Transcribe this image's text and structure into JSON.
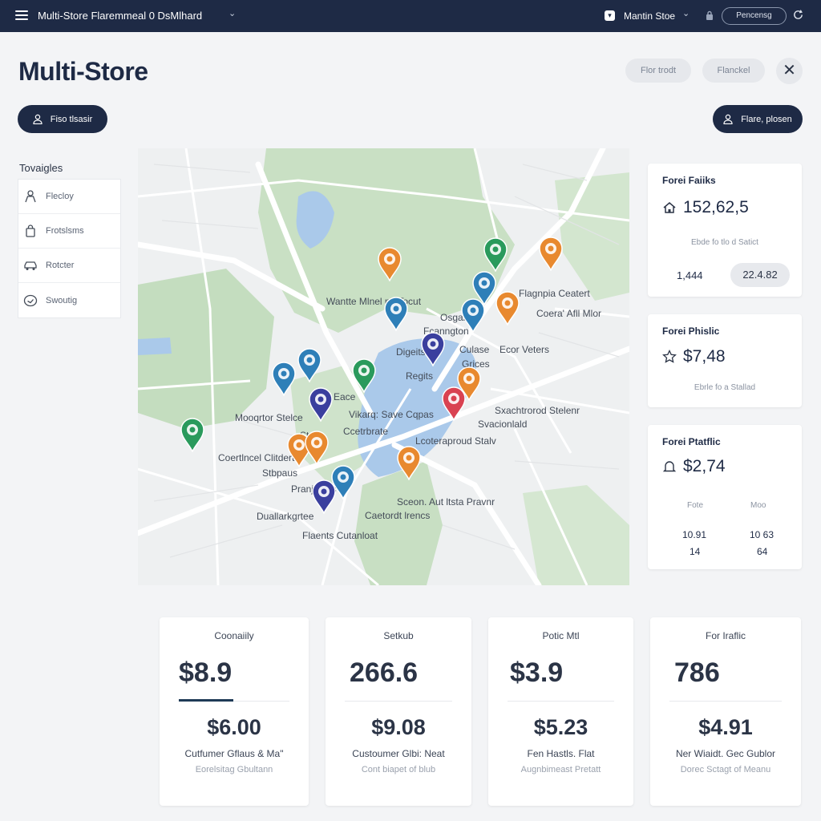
{
  "topbar": {
    "app_title": "Multi-Store Flaremmeal 0 DsMlhard",
    "store_name": "Mantin Stoe",
    "button_label": "Pencensg"
  },
  "header": {
    "title": "Multi-Store",
    "ghost_button_1": "Flor trodt",
    "ghost_button_2": "Flanckel",
    "left_button": "Fiso tlsasir",
    "right_button": "Flare, plosen"
  },
  "nav": {
    "heading": "Tovaigles",
    "items": [
      {
        "label": "Flecloy",
        "icon": "person-icon"
      },
      {
        "label": "Frotslsms",
        "icon": "bag-icon"
      },
      {
        "label": "Rotcter",
        "icon": "car-icon"
      },
      {
        "label": "Swoutig",
        "icon": "chat-icon"
      }
    ]
  },
  "map": {
    "labels": [
      "Wantte Mlnel nb Tocut",
      "Flagnpia Ceatert",
      "Osgane",
      "Fcanngton",
      "Coera' Afll Mlor",
      "Digeits",
      "Culase",
      "Ecor Veters",
      "Grices",
      "Regits",
      "Eace",
      "Mooqrtor Stelce",
      "Vikarq: Save Cqpas",
      "Sxachtrorod Stelenr",
      "Stade",
      "Ccetrbrate",
      "Svacionlald",
      "Lcoteraproud Stalv",
      "Coertlncel Clitdert",
      "Stbpaus",
      "Pranjrcties",
      "Sceon. Aut ltsta Pravnr",
      "Duallarkgrtee",
      "Caetordt lrencs",
      "Flaents Cutanloat"
    ],
    "pin_colors": {
      "orange": "#e8892f",
      "blue": "#2e7fb8",
      "green": "#2a9a5c",
      "navy": "#3a3f9e",
      "red": "#d94251"
    }
  },
  "stats": [
    {
      "title": "Forei Faiiks",
      "value": "152,62,5",
      "sub": "Ebde fo tlo d Satict",
      "left_num": "1,444",
      "chip": "22.4.82",
      "icon": "home-icon"
    },
    {
      "title": "Forei Phislic",
      "value": "$7,48",
      "sub": "Ebrle fo a Stallad",
      "icon": "star-icon"
    },
    {
      "title": "Forei Ptatflic",
      "value": "$2,74",
      "col1": "Fote",
      "col2": "Moo",
      "row1_left": "10.91",
      "row1_right": "10 63",
      "row2_left": "14",
      "row2_right": "64",
      "icon": "bell-icon"
    }
  ],
  "kpis": [
    {
      "title": "Coonaiily",
      "main": "$8.9",
      "second": "$6.00",
      "label": "Cutfumer Gflaus & Ma\"",
      "sub": "Eorelsitag Gbultann"
    },
    {
      "title": "Setkub",
      "main": "266.6",
      "second": "$9.08",
      "label": "Custoumer Glbi: Neat",
      "sub": "Cont biapet of blub"
    },
    {
      "title": "Potic Mtl",
      "main": "$3.9",
      "second": "$5.23",
      "label": "Fen Hastls. Flat",
      "sub": "Augnbimeast Pretatt"
    },
    {
      "title": "For Iraflic",
      "main": "786",
      "second": "$4.91",
      "label": "Ner Wiaidt. Gec Gublor",
      "sub": "Dorec Sctagt of Meanu"
    }
  ]
}
